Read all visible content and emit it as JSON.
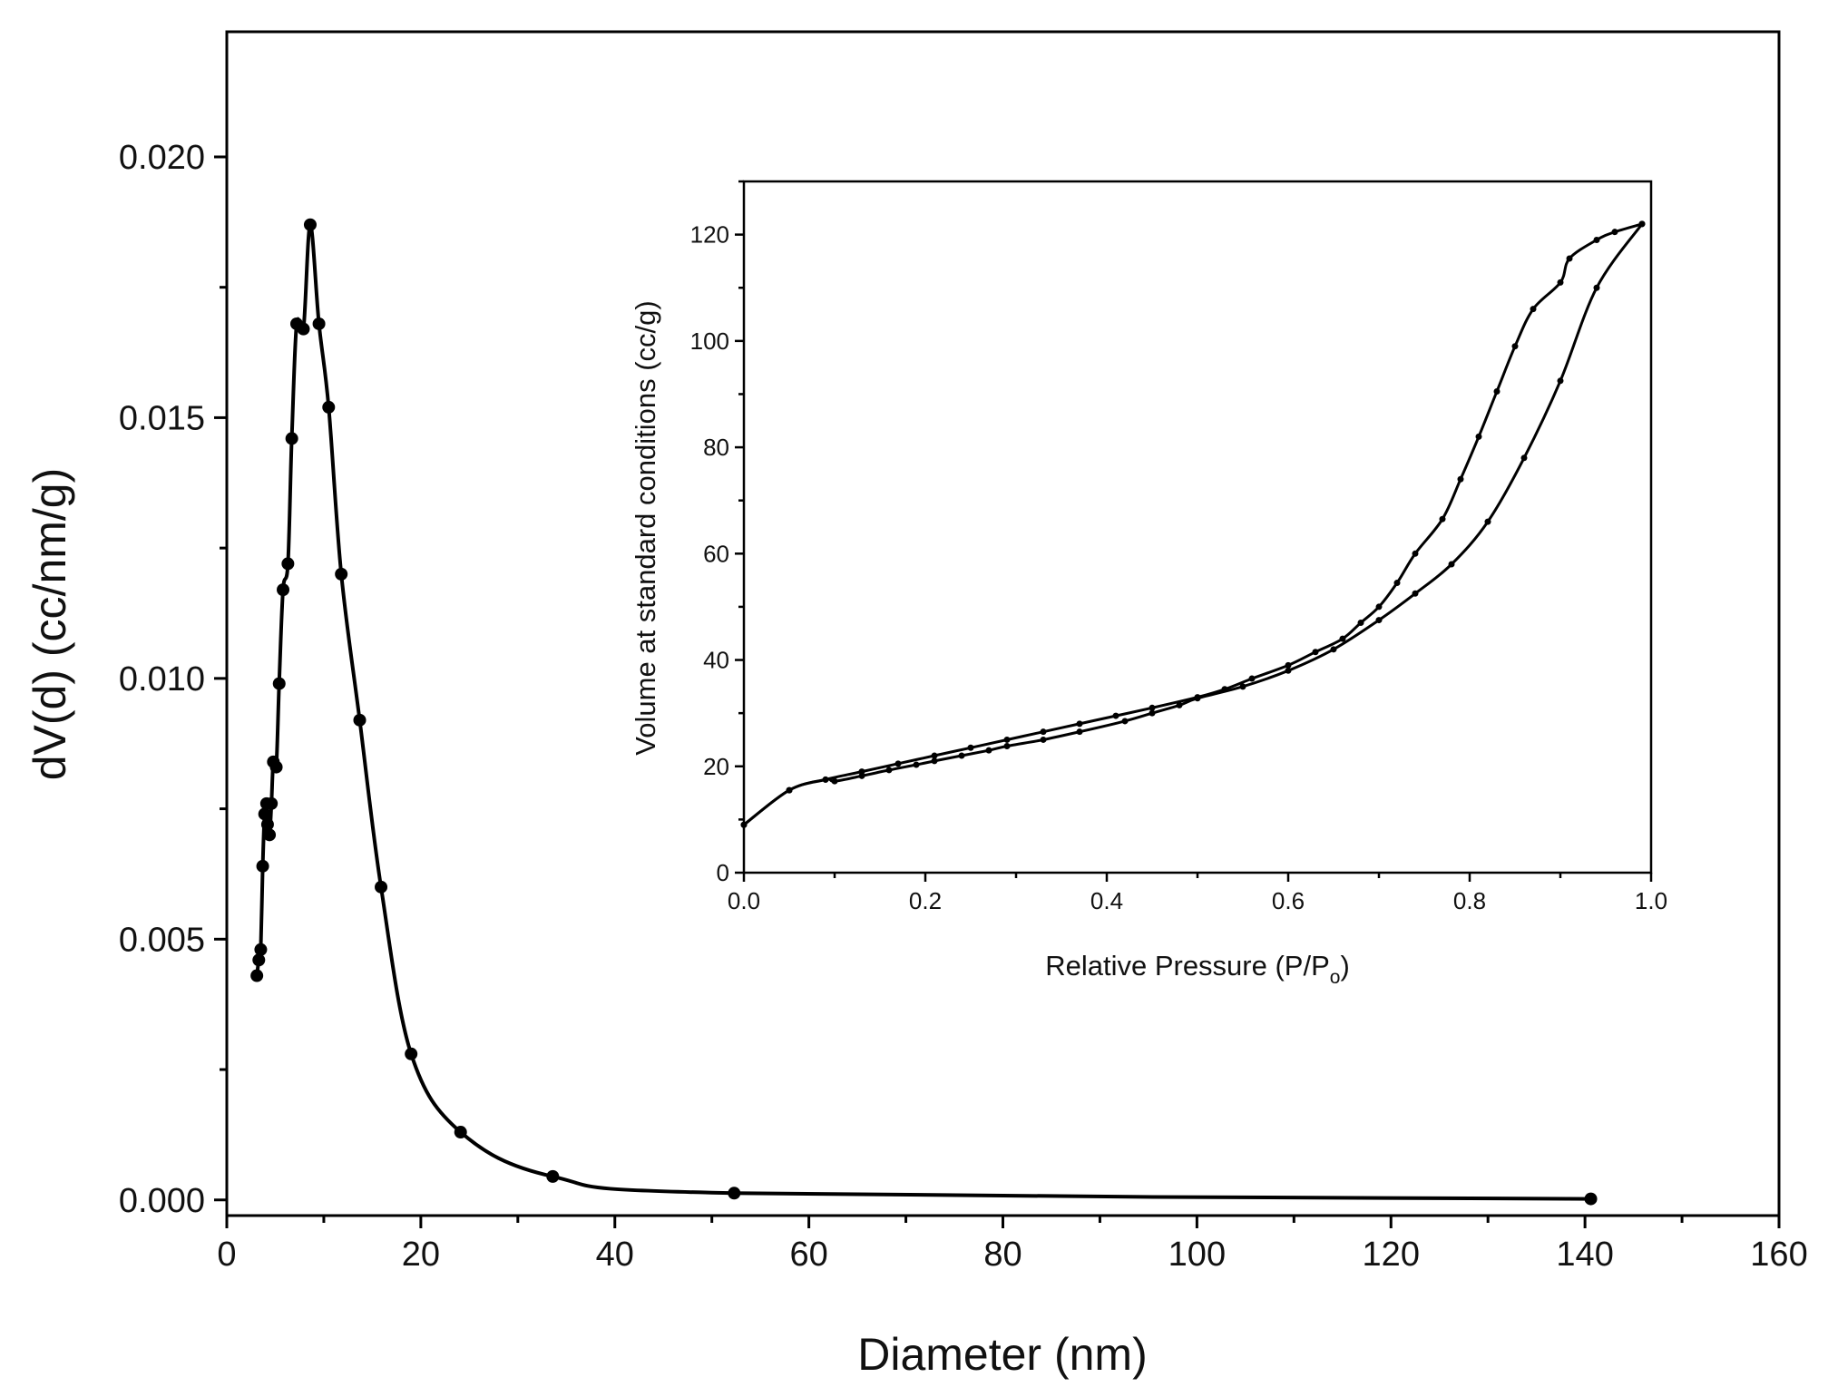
{
  "chart_data": [
    {
      "type": "line",
      "xlabel": "Diameter (nm)",
      "ylabel": "dV(d) (cc/nm/g)",
      "xlim": [
        0,
        160
      ],
      "ylim": [
        -0.0003,
        0.0224
      ],
      "xticks": [
        "0",
        "20",
        "40",
        "60",
        "80",
        "100",
        "120",
        "140",
        "160"
      ],
      "yticks": [
        "0.000",
        "0.005",
        "0.010",
        "0.015",
        "0.020"
      ],
      "grid": false,
      "markers": true,
      "series": [
        {
          "color": "#000000",
          "points": [
            [
              3.1,
              0.0043
            ],
            [
              3.3,
              0.0046
            ],
            [
              3.5,
              0.0048
            ],
            [
              3.7,
              0.0064
            ],
            [
              3.9,
              0.0074
            ],
            [
              4.1,
              0.0076
            ],
            [
              4.2,
              0.0072
            ],
            [
              4.4,
              0.007
            ],
            [
              4.6,
              0.0076
            ],
            [
              4.8,
              0.0084
            ],
            [
              5.1,
              0.0083
            ],
            [
              5.4,
              0.0099
            ],
            [
              5.8,
              0.0117
            ],
            [
              6.3,
              0.0122
            ],
            [
              6.7,
              0.0146
            ],
            [
              7.2,
              0.0168
            ],
            [
              7.9,
              0.0167
            ],
            [
              8.6,
              0.0187
            ],
            [
              9.5,
              0.0168
            ],
            [
              10.5,
              0.0152
            ],
            [
              11.8,
              0.012
            ],
            [
              13.7,
              0.0092
            ],
            [
              15.9,
              0.006
            ],
            [
              19.0,
              0.0028
            ],
            [
              24.1,
              0.0013
            ],
            [
              33.6,
              0.00045
            ],
            [
              52.3,
              0.00013
            ],
            [
              140.6,
              2e-05
            ]
          ]
        }
      ]
    },
    {
      "type": "line",
      "xlabel": "Relative Pressure (P/Po)",
      "xlabel_main": "Relative Pressure (P/P",
      "xlabel_sub": "o",
      "xlabel_close": ")",
      "ylabel": "Volume at standard conditions (cc/g)",
      "xlim": [
        0.0,
        1.0
      ],
      "ylim": [
        0,
        130
      ],
      "xticks": [
        "0.0",
        "0.2",
        "0.4",
        "0.6",
        "0.8",
        "1.0"
      ],
      "yticks": [
        "0",
        "20",
        "40",
        "60",
        "80",
        "100",
        "120"
      ],
      "grid": false,
      "markers": true,
      "series": [
        {
          "color": "#000000",
          "points": [
            [
              0.0,
              9.0
            ],
            [
              0.05,
              15.5
            ],
            [
              0.09,
              17.5
            ],
            [
              0.1,
              17.2
            ],
            [
              0.13,
              18.2
            ],
            [
              0.16,
              19.3
            ],
            [
              0.19,
              20.3
            ],
            [
              0.21,
              21.0
            ],
            [
              0.24,
              22.0
            ],
            [
              0.27,
              23.0
            ],
            [
              0.29,
              23.8
            ],
            [
              0.33,
              25.0
            ],
            [
              0.37,
              26.5
            ],
            [
              0.42,
              28.5
            ],
            [
              0.45,
              30.0
            ],
            [
              0.48,
              31.5
            ],
            [
              0.5,
              32.8
            ],
            [
              0.55,
              35.0
            ],
            [
              0.6,
              38.0
            ],
            [
              0.65,
              42.0
            ],
            [
              0.7,
              47.5
            ],
            [
              0.74,
              52.5
            ],
            [
              0.78,
              58.0
            ],
            [
              0.82,
              66.0
            ],
            [
              0.86,
              78.0
            ],
            [
              0.9,
              92.5
            ],
            [
              0.94,
              110.0
            ],
            [
              0.99,
              122.0
            ]
          ]
        },
        {
          "color": "#000000",
          "points": [
            [
              0.99,
              122.0
            ],
            [
              0.96,
              120.5
            ],
            [
              0.94,
              119.0
            ],
            [
              0.91,
              115.5
            ],
            [
              0.9,
              111.0
            ],
            [
              0.87,
              106.0
            ],
            [
              0.85,
              99.0
            ],
            [
              0.83,
              90.5
            ],
            [
              0.81,
              82.0
            ],
            [
              0.79,
              74.0
            ],
            [
              0.77,
              66.5
            ],
            [
              0.74,
              60.0
            ],
            [
              0.72,
              54.5
            ],
            [
              0.7,
              50.0
            ],
            [
              0.68,
              47.0
            ],
            [
              0.66,
              44.0
            ],
            [
              0.63,
              41.5
            ],
            [
              0.6,
              39.0
            ],
            [
              0.56,
              36.5
            ],
            [
              0.53,
              34.5
            ],
            [
              0.5,
              33.0
            ],
            [
              0.45,
              31.0
            ],
            [
              0.41,
              29.5
            ],
            [
              0.37,
              28.0
            ],
            [
              0.33,
              26.5
            ],
            [
              0.29,
              25.0
            ],
            [
              0.25,
              23.5
            ],
            [
              0.21,
              22.0
            ],
            [
              0.17,
              20.5
            ],
            [
              0.13,
              19.0
            ],
            [
              0.09,
              17.5
            ],
            [
              0.05,
              15.5
            ],
            [
              0.0,
              9.0
            ]
          ]
        }
      ]
    }
  ]
}
